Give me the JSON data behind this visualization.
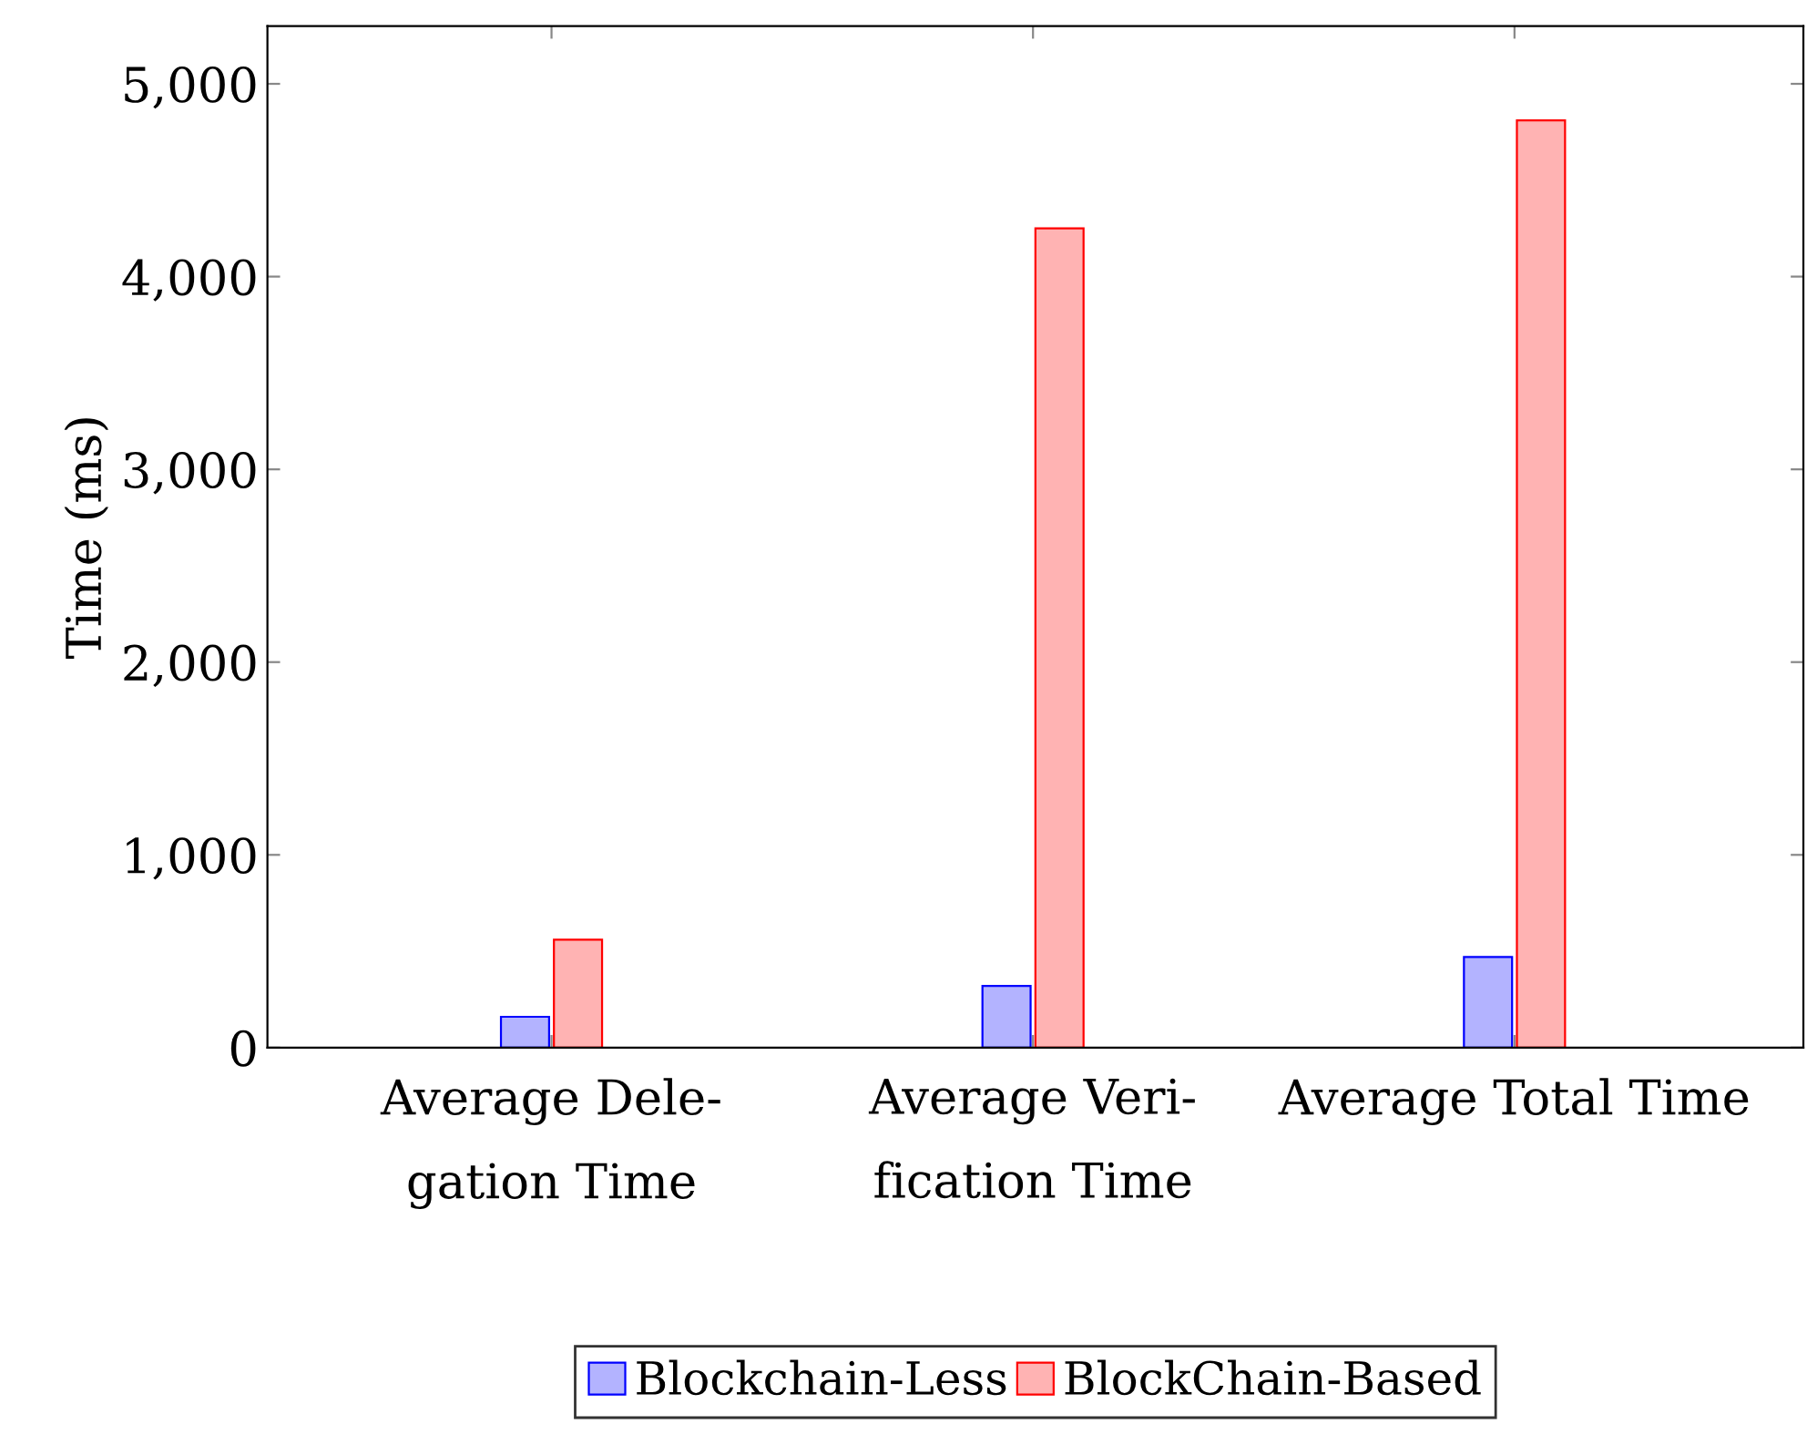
{
  "chart_data": {
    "type": "bar",
    "ylabel": "Time (ms)",
    "categories": [
      "Average Dele-\ngation Time",
      "Average Veri-\nfication Time",
      "Average Total Time"
    ],
    "series": [
      {
        "name": "Blockchain-Less",
        "color": "#b3b3ff",
        "values": [
          160,
          320,
          470
        ]
      },
      {
        "name": "BlockChain-Based",
        "color": "#ffb3b3",
        "values": [
          560,
          4250,
          4810
        ]
      }
    ],
    "ylim": [
      0,
      5300
    ],
    "yticks": [
      0,
      {
        "value": 1000,
        "label": "1,000"
      },
      {
        "value": 2000,
        "label": "2,000"
      },
      {
        "value": 3000,
        "label": "3,000"
      },
      {
        "value": 4000,
        "label": "4,000"
      },
      {
        "value": 5000,
        "label": "5,000"
      }
    ],
    "grid": false,
    "legend": "bottom"
  }
}
